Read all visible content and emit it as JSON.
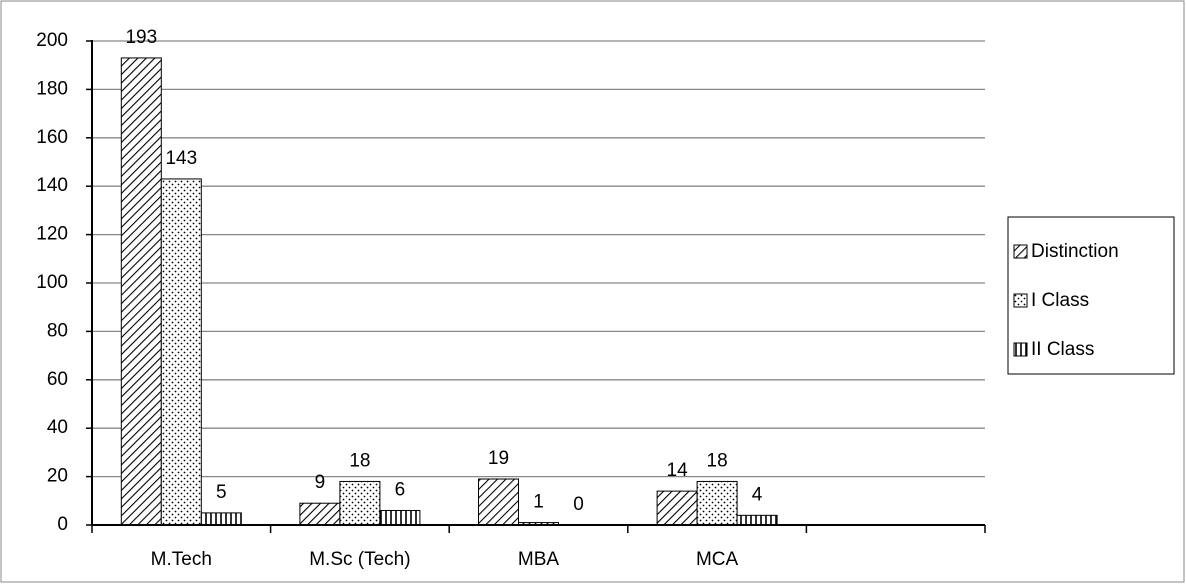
{
  "chart_data": {
    "type": "bar",
    "categories": [
      "M.Tech",
      "M.Sc (Tech)",
      "MBA",
      "MCA",
      null
    ],
    "series": [
      {
        "name": "Distinction",
        "color": "#000000",
        "values": [
          193,
          9,
          19,
          14,
          null
        ]
      },
      {
        "name": "I Class",
        "color": "#000000",
        "values": [
          143,
          18,
          1,
          18,
          null
        ]
      },
      {
        "name": "II Class",
        "color": "#000000",
        "values": [
          5,
          6,
          0,
          4,
          null
        ]
      }
    ],
    "ylim": [
      0,
      200
    ],
    "yticks": [
      0,
      20,
      40,
      60,
      80,
      100,
      120,
      140,
      160,
      180,
      200
    ],
    "grid": true,
    "legend": "right"
  }
}
